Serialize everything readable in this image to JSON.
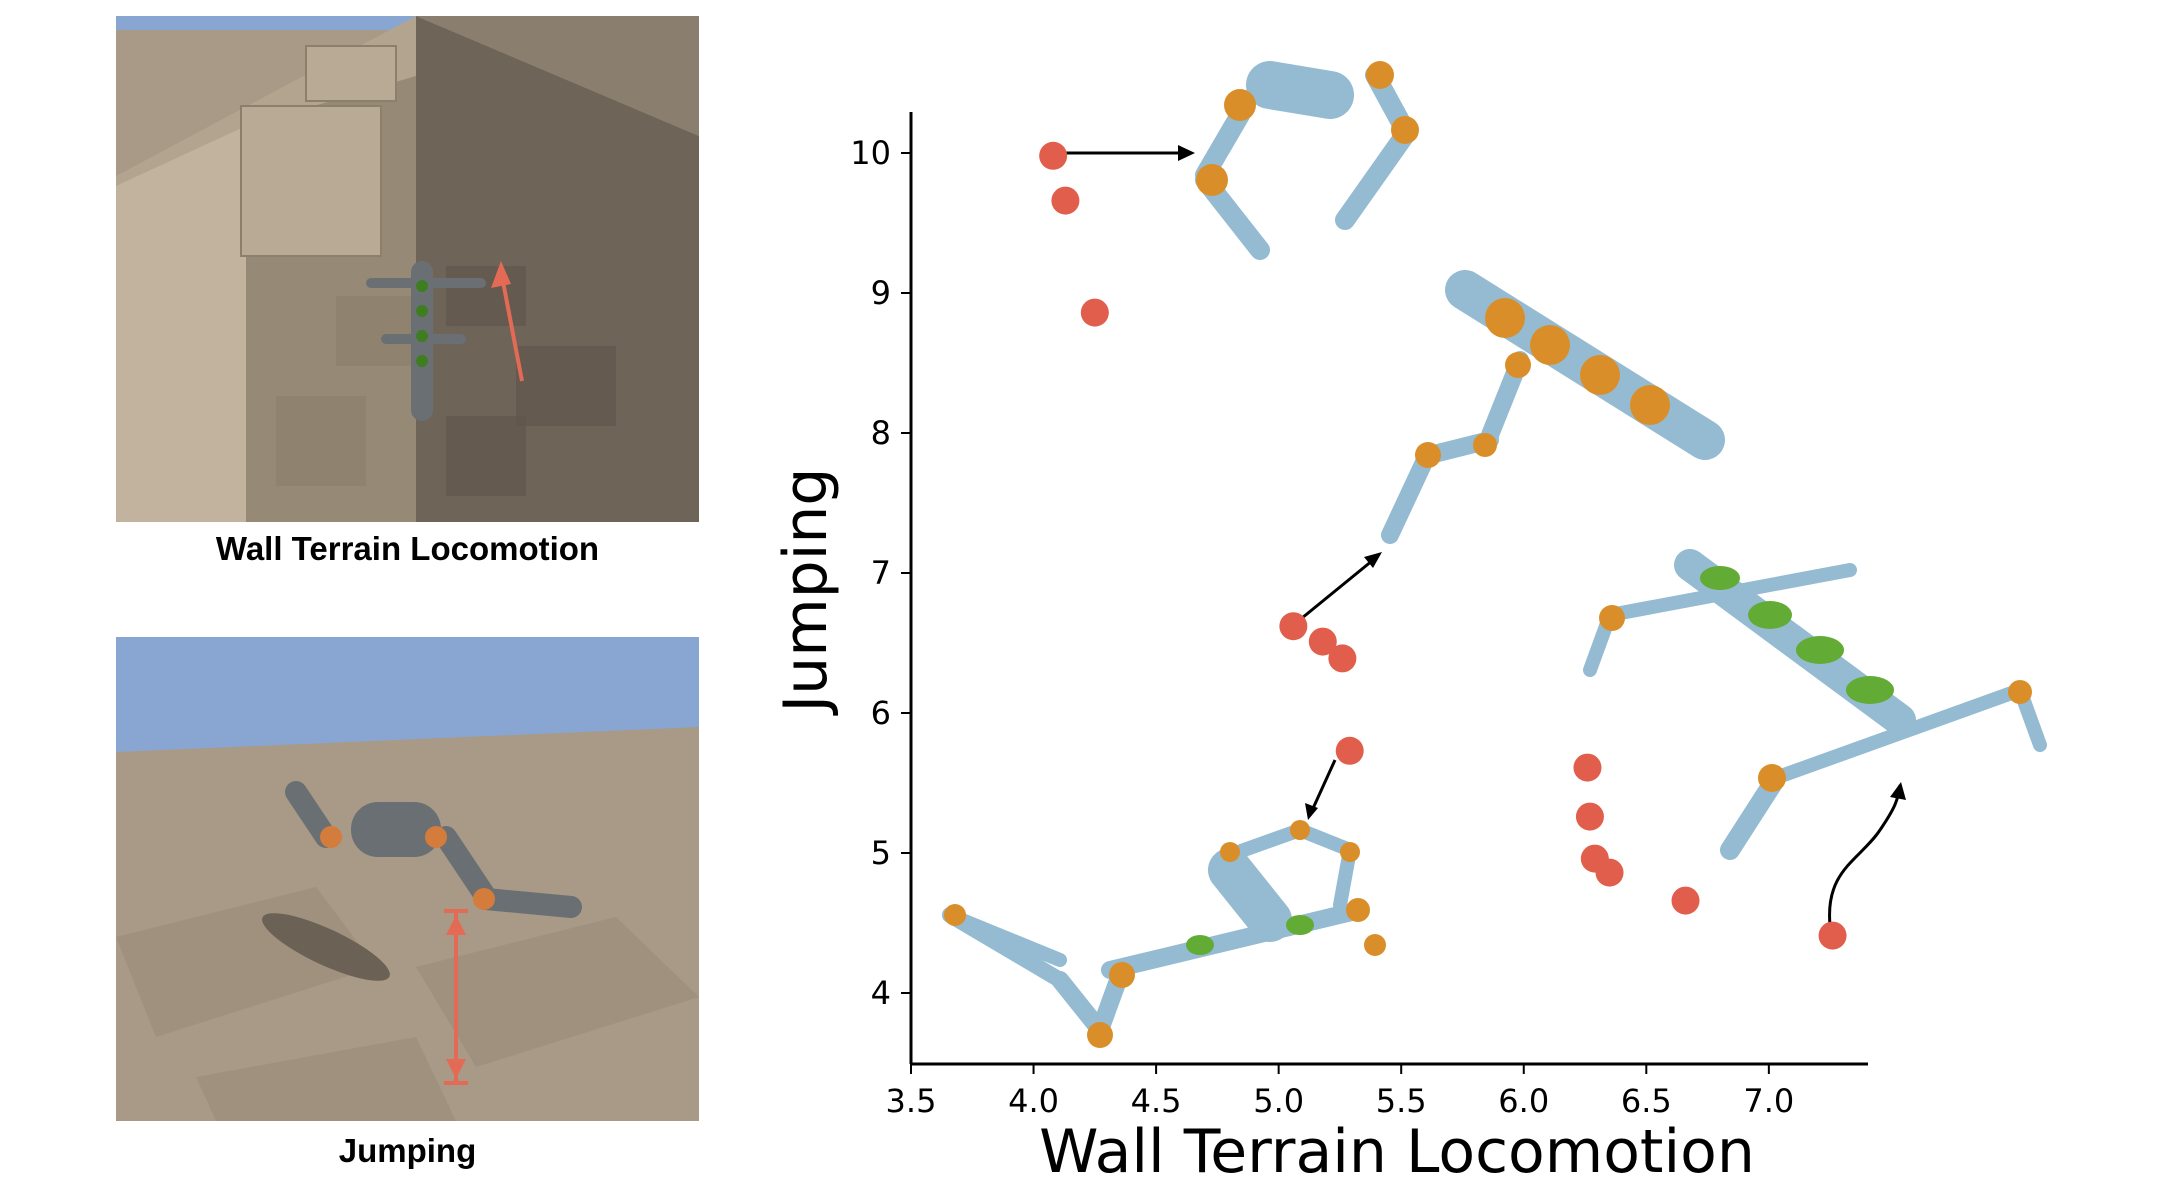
{
  "panels": {
    "top_label": "Wall Terrain Locomotion",
    "bottom_label": "Jumping"
  },
  "colors": {
    "point": "#e05e4b",
    "robot_body": "#8fb8cf",
    "robot_joint_orange": "#d9891e",
    "robot_joint_green": "#5aa72a",
    "sky": "#89a6d2",
    "floor": "#a89a86",
    "arrow": "#000000"
  },
  "chart_data": {
    "type": "scatter",
    "xlabel": "Wall Terrain Locomotion",
    "ylabel": "Jumping",
    "xlim": [
      3.5,
      7.45
    ],
    "ylim": [
      3.5,
      10.3
    ],
    "xticks": [
      "3.5",
      "4.0",
      "4.5",
      "5.0",
      "5.5",
      "6.0",
      "6.5",
      "7.0"
    ],
    "yticks": [
      "4",
      "5",
      "6",
      "7",
      "8",
      "9",
      "10"
    ],
    "grid": false,
    "points": [
      {
        "x": 4.08,
        "y": 9.98
      },
      {
        "x": 4.13,
        "y": 9.66
      },
      {
        "x": 4.25,
        "y": 8.86
      },
      {
        "x": 5.06,
        "y": 6.62
      },
      {
        "x": 5.18,
        "y": 6.51
      },
      {
        "x": 5.26,
        "y": 6.39
      },
      {
        "x": 5.29,
        "y": 5.73
      },
      {
        "x": 6.26,
        "y": 5.61
      },
      {
        "x": 6.27,
        "y": 5.26
      },
      {
        "x": 6.29,
        "y": 4.96
      },
      {
        "x": 6.35,
        "y": 4.86
      },
      {
        "x": 6.66,
        "y": 4.66
      },
      {
        "x": 7.26,
        "y": 4.41
      }
    ]
  }
}
